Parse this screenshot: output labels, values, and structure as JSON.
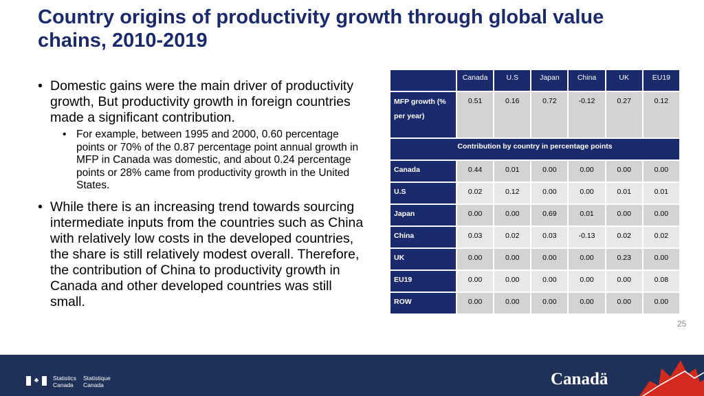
{
  "title": "Country origins of productivity growth through global value chains, 2010-2019",
  "bullets": [
    {
      "text": "Domestic gains were the main driver of productivity growth, But productivity growth in foreign countries made a significant contribution.",
      "sub": "For example, between 1995 and 2000, 0.60 percentage points or 70% of the 0.87 percentage point annual growth in MFP in Canada was domestic, and about 0.24 percentage points or 28% came from productivity growth in the United States."
    },
    {
      "text": "While there is an increasing trend towards sourcing intermediate inputs from the countries such as China with relatively low costs in the developed countries, the share is still relatively modest overall. Therefore, the contribution of China to productivity growth in Canada and other developed countries was still small."
    }
  ],
  "table": {
    "columns": [
      "Canada",
      "U.S",
      "Japan",
      "China",
      "UK",
      "EU19"
    ],
    "mfp_row": {
      "label": "MFP growth (% per year)",
      "values": [
        "0.51",
        "0.16",
        "0.72",
        "-0.12",
        "0.27",
        "0.12"
      ]
    },
    "subheader": "Contribution by country in percentage points",
    "rows": [
      {
        "label": "Canada",
        "values": [
          "0.44",
          "0.01",
          "0.00",
          "0.00",
          "0.00",
          "0.00"
        ]
      },
      {
        "label": "U.S",
        "values": [
          "0.02",
          "0.12",
          "0.00",
          "0.00",
          "0.01",
          "0.01"
        ]
      },
      {
        "label": "Japan",
        "values": [
          "0.00",
          "0.00",
          "0.69",
          "0.01",
          "0.00",
          "0.00"
        ]
      },
      {
        "label": "China",
        "values": [
          "0.03",
          "0.02",
          "0.03",
          "-0.13",
          "0.02",
          "0.02"
        ]
      },
      {
        "label": "UK",
        "values": [
          "0.00",
          "0.00",
          "0.00",
          "0.00",
          "0.23",
          "0.00"
        ]
      },
      {
        "label": "EU19",
        "values": [
          "0.00",
          "0.00",
          "0.00",
          "0.00",
          "0.00",
          "0.08"
        ]
      },
      {
        "label": "ROW",
        "values": [
          "0.00",
          "0.00",
          "0.00",
          "0.00",
          "0.00",
          "0.00"
        ]
      }
    ]
  },
  "page_number": "25",
  "footer": {
    "agency_en": [
      "Statistics",
      "Canada"
    ],
    "agency_fr": [
      "Statistique",
      "Canada"
    ],
    "wordmark": "Canadä",
    "icons": [
      "canada-flag-icon",
      "maple-leaf-icon"
    ]
  },
  "colors": {
    "navy": "#1a2a6c",
    "footer_blue": "#1f3158",
    "cell_dark": "#d3d3d6",
    "cell_light": "#e8e8ea",
    "maple_red": "#d52b1e"
  }
}
